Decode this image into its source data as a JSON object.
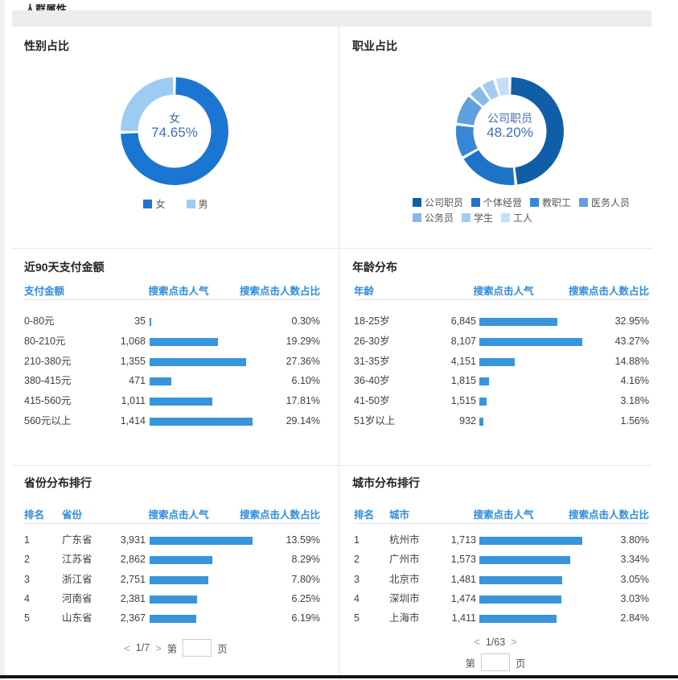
{
  "page": {
    "title": "人群属性"
  },
  "colors": {
    "accent_blue": "#2d8ce0",
    "bar_blue": "#3795dd",
    "center_label_blue": "#3d6fb7"
  },
  "chart_data": [
    {
      "id": "gender-donut",
      "type": "pie",
      "title": "性别占比",
      "center": {
        "label": "女",
        "value": "74.65%"
      },
      "slices": [
        {
          "label": "女",
          "value": 74.65,
          "color": "#1a76d2"
        },
        {
          "label": "男",
          "value": 25.35,
          "color": "#9ecbf2"
        }
      ],
      "note": "donut starts at 12 o'clock clockwise; 男 share is remainder of 74.65%"
    },
    {
      "id": "occupation-donut",
      "type": "pie",
      "title": "职业占比",
      "center": {
        "label": "公司职员",
        "value": "48.20%"
      },
      "slices": [
        {
          "label": "公司职员",
          "value": 48.2,
          "color": "#105ea8"
        },
        {
          "label": "个体经营",
          "value": 18.6,
          "color": "#1e73c8"
        },
        {
          "label": "教职工",
          "value": 10.3,
          "color": "#3787d6"
        },
        {
          "label": "医务人员",
          "value": 9.4,
          "color": "#5fa0e0"
        },
        {
          "label": "公务员",
          "value": 4.5,
          "color": "#87b9eb"
        },
        {
          "label": "学生",
          "value": 4.4,
          "color": "#a5cbf2"
        },
        {
          "label": "工人",
          "value": 4.6,
          "color": "#c6def7"
        }
      ],
      "note": "only 公司职员 48.20% is labeled on screen; other slice values estimated from arc angles"
    }
  ],
  "panels": {
    "payment": {
      "title": "近90天支付金额",
      "columns": [
        "支付金额",
        "搜索点击人气",
        "搜索点击人数占比"
      ],
      "rows": [
        {
          "label": "0-80元",
          "count": "35",
          "pct": "0.30%",
          "pct_num": 0.3
        },
        {
          "label": "80-210元",
          "count": "1,068",
          "pct": "19.29%",
          "pct_num": 19.29
        },
        {
          "label": "210-380元",
          "count": "1,355",
          "pct": "27.36%",
          "pct_num": 27.36
        },
        {
          "label": "380-415元",
          "count": "471",
          "pct": "6.10%",
          "pct_num": 6.1
        },
        {
          "label": "415-560元",
          "count": "1,011",
          "pct": "17.81%",
          "pct_num": 17.81
        },
        {
          "label": "560元以上",
          "count": "1,414",
          "pct": "29.14%",
          "pct_num": 29.14
        }
      ]
    },
    "age": {
      "title": "年龄分布",
      "columns": [
        "年龄",
        "搜索点击人气",
        "搜索点击人数占比"
      ],
      "rows": [
        {
          "label": "18-25岁",
          "count": "6,845",
          "pct": "32.95%",
          "pct_num": 32.95
        },
        {
          "label": "26-30岁",
          "count": "8,107",
          "pct": "43.27%",
          "pct_num": 43.27
        },
        {
          "label": "31-35岁",
          "count": "4,151",
          "pct": "14.88%",
          "pct_num": 14.88
        },
        {
          "label": "36-40岁",
          "count": "1,815",
          "pct": "4.16%",
          "pct_num": 4.16
        },
        {
          "label": "41-50岁",
          "count": "1,515",
          "pct": "3.18%",
          "pct_num": 3.18
        },
        {
          "label": "51岁以上",
          "count": "932",
          "pct": "1.56%",
          "pct_num": 1.56
        }
      ]
    },
    "province": {
      "title": "省份分布排行",
      "columns": [
        "排名",
        "省份",
        "搜索点击人气",
        "搜索点击人数占比"
      ],
      "rows": [
        {
          "rank": "1",
          "label": "广东省",
          "count": "3,931",
          "pct": "13.59%",
          "pct_num": 13.59
        },
        {
          "rank": "2",
          "label": "江苏省",
          "count": "2,862",
          "pct": "8.29%",
          "pct_num": 8.29
        },
        {
          "rank": "3",
          "label": "浙江省",
          "count": "2,751",
          "pct": "7.80%",
          "pct_num": 7.8
        },
        {
          "rank": "4",
          "label": "河南省",
          "count": "2,381",
          "pct": "6.25%",
          "pct_num": 6.25
        },
        {
          "rank": "5",
          "label": "山东省",
          "count": "2,367",
          "pct": "6.19%",
          "pct_num": 6.19
        }
      ],
      "pagination": {
        "prev": "<",
        "info": "1/7",
        "next": ">",
        "goto_prefix": "第",
        "goto_suffix": "页",
        "input_value": ""
      }
    },
    "city": {
      "title": "城市分布排行",
      "columns": [
        "排名",
        "城市",
        "搜索点击人气",
        "搜索点击人数占比"
      ],
      "rows": [
        {
          "rank": "1",
          "label": "杭州市",
          "count": "1,713",
          "pct": "3.80%",
          "pct_num": 3.8
        },
        {
          "rank": "2",
          "label": "广州市",
          "count": "1,573",
          "pct": "3.34%",
          "pct_num": 3.34
        },
        {
          "rank": "3",
          "label": "北京市",
          "count": "1,481",
          "pct": "3.05%",
          "pct_num": 3.05
        },
        {
          "rank": "4",
          "label": "深圳市",
          "count": "1,474",
          "pct": "3.03%",
          "pct_num": 3.03
        },
        {
          "rank": "5",
          "label": "上海市",
          "count": "1,411",
          "pct": "2.84%",
          "pct_num": 2.84
        }
      ],
      "pagination": {
        "prev": "<",
        "info": "1/63",
        "next": ">",
        "goto_prefix": "第",
        "goto_suffix": "页",
        "input_value": ""
      }
    }
  }
}
